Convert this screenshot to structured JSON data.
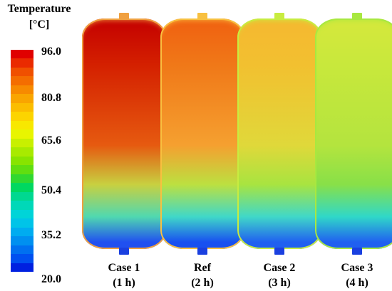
{
  "legend": {
    "title_line1": "Temperature",
    "title_line2": "[°C]",
    "ticks": [
      "96.0",
      "80.8",
      "65.6",
      "50.4",
      "35.2",
      "20.0"
    ],
    "range": [
      20.0,
      96.0
    ],
    "band_colors": [
      "#e00000",
      "#ea2a00",
      "#f05000",
      "#f46d00",
      "#f78a00",
      "#f9a500",
      "#fbbd00",
      "#fcd400",
      "#f8e800",
      "#e8f500",
      "#c8f000",
      "#a8ea00",
      "#88e400",
      "#60de10",
      "#30d830",
      "#00d860",
      "#00d890",
      "#00d8b8",
      "#00d4d8",
      "#00c4e8",
      "#00acf0",
      "#0090f0",
      "#0070f0",
      "#0050f0",
      "#0020e0"
    ]
  },
  "tanks": [
    {
      "label_line1": "Case 1",
      "label_line2": "(1 h)",
      "colors": {
        "top": "#c40000",
        "upper": "#d42000",
        "mid": "#e65a10",
        "lower": "#c8d040",
        "bottom": "#50d8b0",
        "base": "#2050f0",
        "rim": "#f0a040"
      }
    },
    {
      "label_line1": "Ref",
      "label_line2": "(2 h)",
      "colors": {
        "top": "#f06010",
        "upper": "#f07818",
        "mid": "#f5a030",
        "lower": "#bce040",
        "bottom": "#40d8c8",
        "base": "#1850f0",
        "rim": "#f8c040"
      }
    },
    {
      "label_line1": "Case 2",
      "label_line2": "(3 h)",
      "colors": {
        "top": "#f5b830",
        "upper": "#f2c030",
        "mid": "#e0d83a",
        "lower": "#a8e440",
        "bottom": "#40d8c8",
        "base": "#2060f0",
        "rim": "#c8ec40"
      }
    },
    {
      "label_line1": "Case 3",
      "label_line2": "(4 h)",
      "colors": {
        "top": "#d6e83c",
        "upper": "#c8e83c",
        "mid": "#b4e43e",
        "lower": "#88e048",
        "bottom": "#30d8c8",
        "base": "#2060f0",
        "rim": "#a8e840"
      }
    }
  ]
}
